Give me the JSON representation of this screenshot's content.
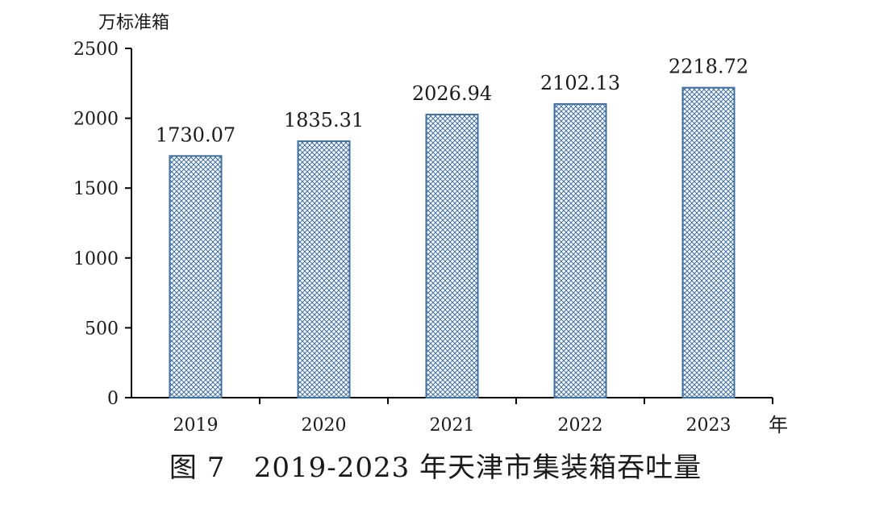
{
  "caption": "图 7   2019-2023 年天津市集装箱吞吐量",
  "chart_data": {
    "type": "bar",
    "title": "",
    "ylabel": "万标准箱",
    "xlabel": "年",
    "categories": [
      "2019",
      "2020",
      "2021",
      "2022",
      "2023"
    ],
    "values": [
      1730.07,
      1835.31,
      2026.94,
      2102.13,
      2218.72
    ],
    "value_labels": [
      "1730.07",
      "1835.31",
      "2026.94",
      "2102.13",
      "2218.72"
    ],
    "ylim": [
      0,
      2500
    ],
    "yticks": [
      0,
      500,
      1000,
      1500,
      2000,
      2500
    ],
    "grid": false,
    "legend": "none",
    "bar_fill": "#a9c3e0",
    "bar_pattern_color": "#3f6f9f",
    "bar_stroke": "#3f6f9f"
  }
}
